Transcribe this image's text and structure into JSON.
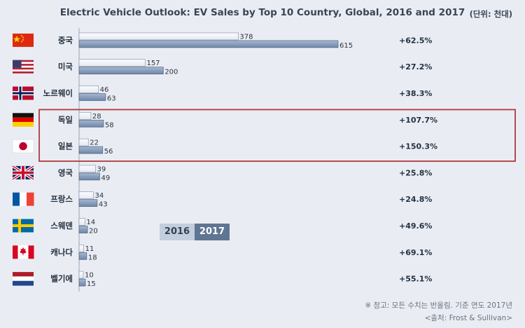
{
  "header": {
    "title": "Electric Vehicle Outlook: EV Sales by Top 10 Country, Global, 2016 and 2017",
    "unit": "(단위: 천대)"
  },
  "legend": {
    "label_2016": "2016",
    "label_2017": "2017"
  },
  "footer": {
    "note": "※ 참고: 모든 수치는 반올림. 기준 연도 2017년",
    "source": "<출처: Frost & Sullivan>"
  },
  "colors": {
    "bar_2016": "#e4e9f1",
    "bar_2017": "#6d86a9",
    "highlight_box": "#b03a3e",
    "background": "#e9edf3"
  },
  "chart_data": {
    "type": "bar",
    "orientation": "horizontal",
    "categories": [
      "중국",
      "미국",
      "노르웨이",
      "독일",
      "일본",
      "영국",
      "프랑스",
      "스웨덴",
      "캐나다",
      "벨기에"
    ],
    "flags": [
      "china-flag",
      "usa-flag",
      "norway-flag",
      "germany-flag",
      "japan-flag",
      "uk-flag",
      "france-flag",
      "sweden-flag",
      "canada-flag",
      "belgium-flag"
    ],
    "series": [
      {
        "name": "2016",
        "values": [
          378,
          157,
          46,
          28,
          22,
          39,
          34,
          14,
          11,
          10
        ]
      },
      {
        "name": "2017",
        "values": [
          615,
          200,
          63,
          58,
          56,
          49,
          43,
          20,
          18,
          15
        ]
      }
    ],
    "growth": [
      "+62.5%",
      "+27.2%",
      "+38.3%",
      "+107.7%",
      "+150.3%",
      "+25.8%",
      "+24.8%",
      "+49.6%",
      "+69.1%",
      "+55.1%"
    ],
    "highlighted": [
      "독일",
      "일본"
    ],
    "xlim": [
      0,
      615
    ],
    "grid": false,
    "legend_position": "center-left"
  }
}
